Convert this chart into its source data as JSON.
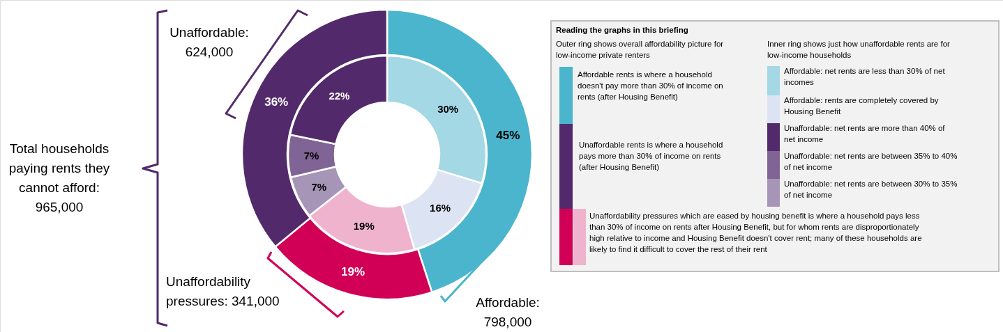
{
  "chart_data": [
    {
      "type": "donut",
      "series": [
        {
          "values": [
            45,
            19,
            36
          ],
          "colors": [
            "#4ab5cc",
            "#d10056",
            "#522a6b"
          ],
          "value_labels": [
            "45%",
            "19%",
            "36%"
          ]
        },
        {
          "values": [
            30,
            16,
            19,
            7,
            7,
            22
          ],
          "colors": [
            "#a3d8e4",
            "#dce4f3",
            "#f0b3ce",
            "#a795b8",
            "#7f6495",
            "#522a6b"
          ],
          "value_labels": [
            "30%",
            "16%",
            "19%",
            "7%",
            "7%",
            "22%"
          ]
        }
      ],
      "annotations": [
        "Affordable: 798,000",
        "Unaffordability pressures: 341,000",
        "Unaffordable: 624,000",
        "Total households paying rents they cannot afford: 965,000"
      ]
    },
    {
      "type": "other",
      "title": "Reading the graphs in this briefing",
      "colors": [
        "#4ab5cc",
        "#522a6b",
        "#d10056",
        "#f0b3ce",
        "#a3d8e4",
        "#dce4f3",
        "#522a6b",
        "#7f6495",
        "#a795b8"
      ],
      "annotations": [
        "Outer ring shows overall affordability picture for low-income private renters",
        "Affordable rents is where a household doesn't pay more than 30% of income on rents (after Housing Benefit)",
        "Unaffordable rents is where a household pays more than 30% of income on rents (after Housing Benefit)",
        "Unaffordability pressures which are eased by housing benefit is where a household pays less than 30% of income on rents after Housing Benefit, but for whom rents are disproportionately high relative to income and Housing Benefit doesn't cover rent; many of these households are likely to find it difficult to cover the rest of their rent",
        "Inner ring shows just how unaffordable rents are for low-income households",
        "Affordable: net rents are less than 30% of net incomes",
        "Affordable: rents are completely covered by Housing Benefit",
        "Unaffordable: net rents are more than 40% of net income",
        "Unaffordable: net rents are between 35% to 40% of net income",
        "Unaffordable: net rents are between 30% to 35% of net income"
      ]
    }
  ]
}
